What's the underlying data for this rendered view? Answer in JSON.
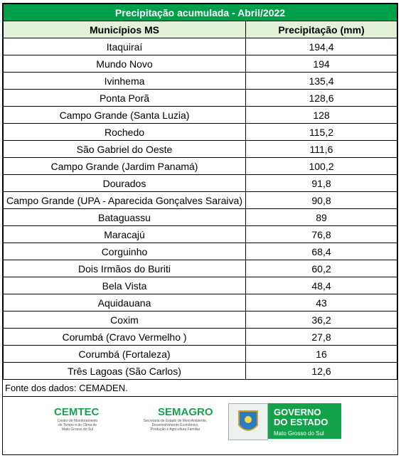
{
  "title": "Precipitação acumulada - Abril/2022",
  "header": [
    "Municípios MS",
    "Precipitação (mm)"
  ],
  "rows": [
    [
      "Itaquiraí",
      "194,4"
    ],
    [
      "Mundo Novo",
      "194"
    ],
    [
      "Ivinhema",
      "135,4"
    ],
    [
      "Ponta Porã",
      "128,6"
    ],
    [
      "Campo Grande (Santa Luzia)",
      "128"
    ],
    [
      "Rochedo",
      "115,2"
    ],
    [
      "São Gabriel do Oeste",
      "111,6"
    ],
    [
      "Campo Grande (Jardim Panamá)",
      "100,2"
    ],
    [
      "Dourados",
      "91,8"
    ],
    [
      "Campo Grande (UPA - Aparecida Gonçalves Saraiva)",
      "90,8"
    ],
    [
      "Bataguassu",
      "89"
    ],
    [
      "Maracajú",
      "76,8"
    ],
    [
      "Corguinho",
      "68,4"
    ],
    [
      "Dois Irmãos do Buriti",
      "60,2"
    ],
    [
      "Bela Vista",
      "48,4"
    ],
    [
      "Aquidauana",
      "43"
    ],
    [
      "Coxim",
      "36,2"
    ],
    [
      "Corumbá (Cravo Vermelho )",
      "27,8"
    ],
    [
      "Corumbá (Fortaleza)",
      "16"
    ],
    [
      "Três Lagoas (São Carlos)",
      "12,6"
    ]
  ],
  "source": "Fonte dos dados: CEMADEN.",
  "logos": {
    "cemtec": {
      "name": "CEMTEC",
      "lines": [
        "Centro de Monitoramento",
        "do Tempo e do Clima de",
        "Mato Grosso do Sul"
      ]
    },
    "semagro": {
      "name": "SEMAGRO",
      "lines": [
        "Secretaria de Estado de Meio Ambiente,",
        "Desenvolvimento Econômico,",
        "Produção e Agricultura Familiar"
      ]
    },
    "governo": {
      "lines": [
        "GOVERNO",
        "DO ESTADO"
      ],
      "state": "Mato Grosso do Sul"
    }
  }
}
